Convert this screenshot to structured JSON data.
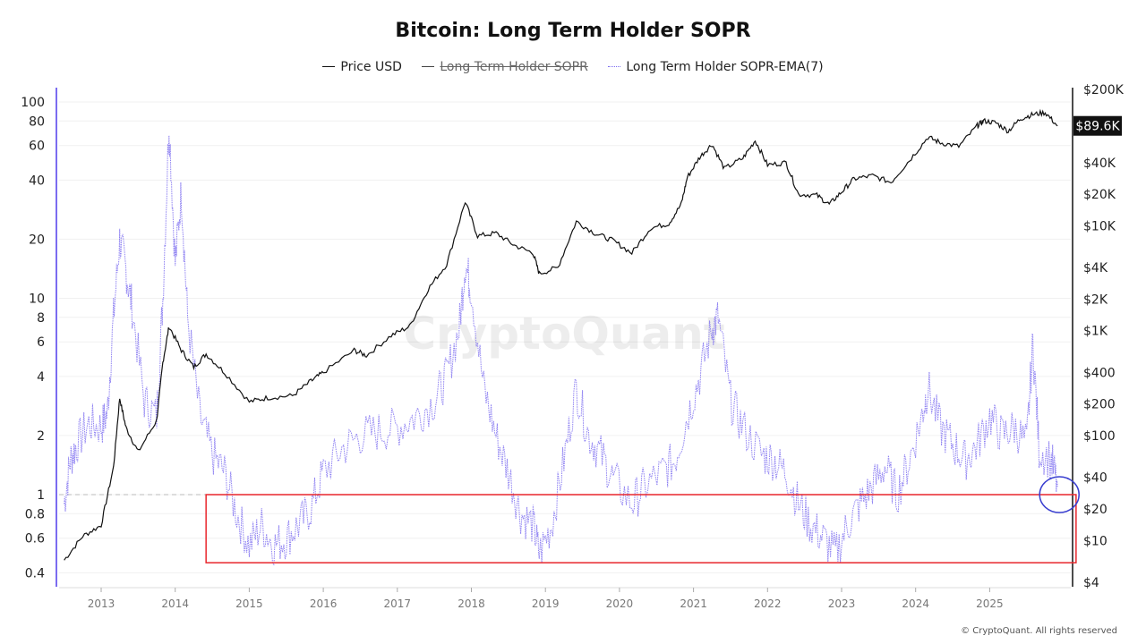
{
  "title": "Bitcoin: Long Term Holder SOPR",
  "legend": [
    {
      "label": "Price USD",
      "color": "#111111",
      "style": "solid",
      "hidden": false
    },
    {
      "label": "Long Term Holder SOPR",
      "color": "#444444",
      "style": "solid",
      "hidden": true
    },
    {
      "label": "Long Term Holder SOPR-EMA(7)",
      "color": "#7b6cf0",
      "style": "dotted",
      "hidden": false
    }
  ],
  "watermark": "CryptoQuant",
  "footer": "© CryptoQuant. All rights reserved",
  "chart_data": {
    "type": "line",
    "title": "Bitcoin: Long Term Holder SOPR",
    "x_range": [
      "2012-06",
      "2025-12"
    ],
    "x_ticks": [
      "2013",
      "2014",
      "2015",
      "2016",
      "2017",
      "2018",
      "2019",
      "2020",
      "2021",
      "2022",
      "2023",
      "2024",
      "2025"
    ],
    "left_axis": {
      "scale": "log",
      "range": [
        0.38,
        110
      ],
      "ticks": [
        0.4,
        0.6,
        0.8,
        1,
        2,
        4,
        6,
        8,
        10,
        20,
        40,
        60,
        80,
        100
      ],
      "tick_labels": [
        "0.4",
        "0.6",
        "0.8",
        "1",
        "2",
        "4",
        "6",
        "8",
        "10",
        "20",
        "40",
        "60",
        "80",
        "100"
      ],
      "color": "#7b6cf0"
    },
    "right_axis": {
      "scale": "log",
      "range": [
        4,
        200000
      ],
      "ticks": [
        4,
        10,
        20,
        40,
        100,
        200,
        400,
        1000,
        2000,
        4000,
        10000,
        20000,
        40000,
        200000
      ],
      "tick_labels": [
        "$4",
        "$10",
        "$20",
        "$40",
        "$100",
        "$200",
        "$400",
        "$1K",
        "$2K",
        "$4K",
        "$10K",
        "$20K",
        "$40K",
        "$200K"
      ],
      "current_value_label": "$89.6K",
      "current_value": 89600
    },
    "grid": true,
    "legend_position": "top-center",
    "reference_line": {
      "axis": "left",
      "value": 1,
      "style": "dashed"
    },
    "series": [
      {
        "name": "Price USD",
        "axis": "right",
        "color": "#111111",
        "x": [
          "2012-07",
          "2012-10",
          "2013-01",
          "2013-03",
          "2013-04",
          "2013-05",
          "2013-07",
          "2013-10",
          "2013-11",
          "2013-12",
          "2014-02",
          "2014-04",
          "2014-06",
          "2014-09",
          "2015-01",
          "2015-04",
          "2015-08",
          "2015-11",
          "2016-01",
          "2016-06",
          "2016-08",
          "2016-12",
          "2017-03",
          "2017-06",
          "2017-09",
          "2017-12",
          "2018-02",
          "2018-05",
          "2018-08",
          "2018-11",
          "2018-12",
          "2019-03",
          "2019-06",
          "2019-09",
          "2019-12",
          "2020-03",
          "2020-06",
          "2020-09",
          "2020-11",
          "2020-12",
          "2021-02",
          "2021-04",
          "2021-06",
          "2021-09",
          "2021-11",
          "2022-01",
          "2022-04",
          "2022-06",
          "2022-09",
          "2022-11",
          "2023-01",
          "2023-03",
          "2023-06",
          "2023-09",
          "2023-12",
          "2024-03",
          "2024-05",
          "2024-08",
          "2024-11",
          "2024-12",
          "2025-02",
          "2025-04",
          "2025-06",
          "2025-08",
          "2025-10",
          "2025-12"
        ],
        "values": [
          6.5,
          11,
          14,
          50,
          228,
          120,
          70,
          140,
          500,
          1100,
          650,
          450,
          600,
          400,
          210,
          230,
          240,
          330,
          400,
          650,
          580,
          900,
          1100,
          2500,
          4300,
          17000,
          8000,
          8500,
          6500,
          5500,
          3500,
          4000,
          11000,
          8500,
          7200,
          5500,
          9500,
          10500,
          16000,
          29000,
          45000,
          60000,
          35000,
          44000,
          65000,
          38000,
          40000,
          20000,
          19500,
          16000,
          21000,
          28000,
          30000,
          26000,
          42000,
          70000,
          62000,
          57000,
          90000,
          100000,
          96000,
          80000,
          105000,
          115000,
          120000,
          89600
        ]
      },
      {
        "name": "Long Term Holder SOPR-EMA(7)",
        "axis": "left",
        "color": "#7b6cf0",
        "x": [
          "2012-07",
          "2012-08",
          "2012-09",
          "2012-11",
          "2013-01",
          "2013-02",
          "2013-03",
          "2013-04",
          "2013-05",
          "2013-06",
          "2013-08",
          "2013-10",
          "2013-11",
          "2013-12",
          "2014-01",
          "2014-02",
          "2014-03",
          "2014-05",
          "2014-07",
          "2014-09",
          "2014-11",
          "2015-01",
          "2015-03",
          "2015-05",
          "2015-07",
          "2015-09",
          "2015-11",
          "2016-01",
          "2016-04",
          "2016-07",
          "2016-10",
          "2017-01",
          "2017-04",
          "2017-07",
          "2017-09",
          "2017-11",
          "2017-12",
          "2018-01",
          "2018-03",
          "2018-05",
          "2018-07",
          "2018-09",
          "2018-11",
          "2018-12",
          "2019-02",
          "2019-04",
          "2019-06",
          "2019-08",
          "2019-10",
          "2019-12",
          "2020-03",
          "2020-05",
          "2020-08",
          "2020-10",
          "2020-12",
          "2021-02",
          "2021-04",
          "2021-05",
          "2021-07",
          "2021-09",
          "2021-12",
          "2022-02",
          "2022-04",
          "2022-06",
          "2022-08",
          "2022-10",
          "2022-12",
          "2023-02",
          "2023-04",
          "2023-06",
          "2023-08",
          "2023-10",
          "2023-12",
          "2024-02",
          "2024-03",
          "2024-05",
          "2024-07",
          "2024-09",
          "2024-11",
          "2025-01",
          "2025-03",
          "2025-05",
          "2025-07",
          "2025-08",
          "2025-09",
          "2025-11",
          "2025-12"
        ],
        "values": [
          0.9,
          1.5,
          1.8,
          2.3,
          2.2,
          2.6,
          8,
          20,
          14,
          9,
          3,
          2.5,
          10,
          80,
          15,
          35,
          8,
          2.5,
          1.6,
          1.3,
          0.8,
          0.55,
          0.7,
          0.55,
          0.6,
          0.7,
          0.85,
          1.3,
          1.7,
          2,
          2.1,
          2.2,
          2.5,
          3,
          4,
          7,
          15,
          11,
          3.5,
          2,
          1.3,
          0.8,
          0.7,
          0.5,
          0.7,
          1.5,
          3.5,
          2,
          1.6,
          1.2,
          0.9,
          1.1,
          1.3,
          1.5,
          2.5,
          4,
          7,
          8,
          3,
          2.2,
          1.6,
          1.5,
          1.3,
          0.9,
          0.7,
          0.6,
          0.5,
          0.7,
          0.9,
          1.1,
          1.4,
          1.0,
          1.5,
          2.5,
          3.5,
          2.2,
          1.8,
          1.5,
          1.8,
          2.5,
          2.0,
          2.2,
          1.8,
          6,
          1.7,
          1.5,
          1.1
        ]
      }
    ],
    "annotations": [
      {
        "type": "rect",
        "color": "#e8272d",
        "x": [
          "2014-06",
          "2026-03"
        ],
        "y_left": [
          0.45,
          1.0
        ]
      },
      {
        "type": "ellipse",
        "color": "#3a3fd0",
        "center_x": "2025-12",
        "center_y_left": 1.0
      }
    ]
  }
}
